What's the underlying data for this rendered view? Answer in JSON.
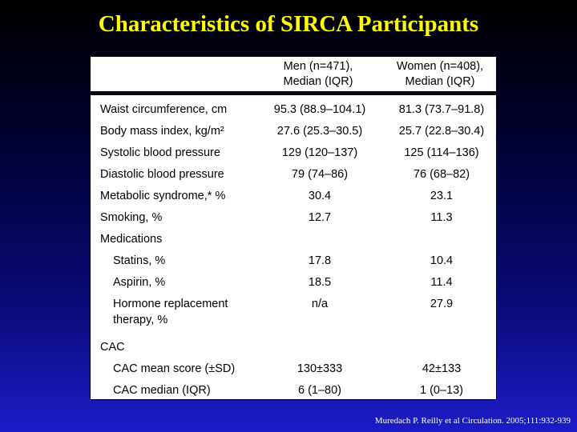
{
  "title": "Characteristics of SIRCA Participants",
  "header": {
    "men_line1": "Men (n=471),",
    "men_line2": "Median (IQR)",
    "women_line1": "Women (n=408),",
    "women_line2": "Median (IQR)"
  },
  "rows": [
    {
      "label": "Waist circumference, cm",
      "men": "95.3 (88.9–104.1)",
      "women": "81.3 (73.7–91.8)"
    },
    {
      "label": "Body mass index, kg/m²",
      "men": "27.6 (25.3–30.5)",
      "women": "25.7 (22.8–30.4)"
    },
    {
      "label": "Systolic blood pressure",
      "men": "129 (120–137)",
      "women": "125 (114–136)"
    },
    {
      "label": "Diastolic blood pressure",
      "men": "79 (74–86)",
      "women": "76 (68–82)"
    },
    {
      "label": "Metabolic syndrome,* %",
      "men": "30.4",
      "women": "23.1"
    },
    {
      "label": "Smoking, %",
      "men": "12.7",
      "women": "11.3"
    },
    {
      "label": "Medications",
      "men": "",
      "women": ""
    },
    {
      "label": "Statins, %",
      "men": "17.8",
      "women": "10.4"
    },
    {
      "label": "Aspirin, %",
      "men": "18.5",
      "women": "11.4"
    },
    {
      "label": "Hormone replacement therapy, %",
      "men": "n/a",
      "women": "27.9"
    },
    {
      "label": "CAC",
      "men": "",
      "women": ""
    },
    {
      "label": "CAC mean score (±SD)",
      "men": "130±333",
      "women": "42±133"
    },
    {
      "label": "CAC median (IQR)",
      "men": "6 (1–80)",
      "women": "1 (0–13)"
    }
  ],
  "citation": "Muredach P. Reilly et al Circulation. 2005;111:932-939",
  "colors": {
    "title": "#ffff00",
    "background_top": "#000000",
    "background_bottom": "#1c1cc8",
    "table_background": "#ffffff"
  }
}
